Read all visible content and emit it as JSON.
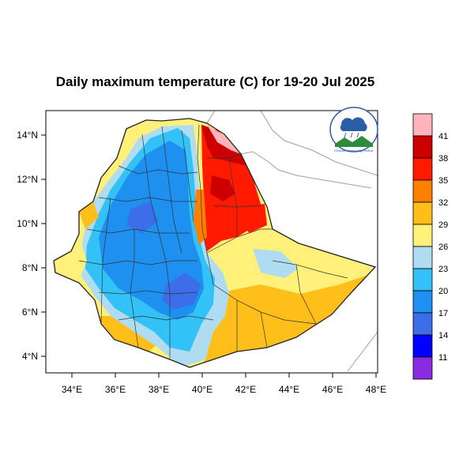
{
  "title": "Daily maximum temperature (C) for 19-20 Jul 2025",
  "x_ticks": [
    "34°E",
    "36°E",
    "38°E",
    "40°E",
    "42°E",
    "44°E",
    "46°E",
    "48°E"
  ],
  "y_ticks": [
    "14°N",
    "12°N",
    "10°N",
    "8°N",
    "6°N",
    "4°N"
  ],
  "colorbar": {
    "labels": [
      "41",
      "38",
      "35",
      "32",
      "29",
      "26",
      "23",
      "20",
      "17",
      "14",
      "11"
    ],
    "colors": [
      "#ffb3ba",
      "#cc0000",
      "#ff1a00",
      "#ff8000",
      "#ffbf1a",
      "#fff07a",
      "#b0dcf2",
      "#33c2f7",
      "#1e90f0",
      "#3b6ee8",
      "#0000ff",
      "#8a2be2"
    ]
  },
  "colors": {
    "cool_blue": "#1e90f0",
    "light_blue": "#b0dcf2",
    "pale_yellow": "#fff07a",
    "orange": "#ffbf1a",
    "red": "#ff1a00",
    "dark_red": "#cc0000",
    "deep_blue": "#3b6ee8"
  },
  "logo": {
    "text": "Ethiopian Meteorology Institute",
    "icon": "cloud-sun-logo"
  }
}
